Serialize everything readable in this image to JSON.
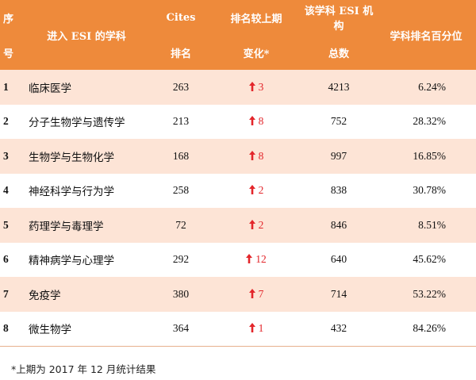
{
  "header": {
    "no_line1": "序",
    "no_line2": "号",
    "subject": "进入 ESI 的学科",
    "cites_line1": "Cites",
    "cites_line2": "排名",
    "change_line1": "排名较上期",
    "change_line2": "变化*",
    "total_line1": "该学科 ESI 机构",
    "total_line2": "总数",
    "percentile": "学科排名百分位"
  },
  "rows": [
    {
      "no": "1",
      "subject": "临床医学",
      "rank": "263",
      "change": "3",
      "total": "4213",
      "pct": "6.24%"
    },
    {
      "no": "2",
      "subject": "分子生物学与遗传学",
      "rank": "213",
      "change": "8",
      "total": "752",
      "pct": "28.32%"
    },
    {
      "no": "3",
      "subject": "生物学与生物化学",
      "rank": "168",
      "change": "8",
      "total": "997",
      "pct": "16.85%"
    },
    {
      "no": "4",
      "subject": "神经科学与行为学",
      "rank": "258",
      "change": "2",
      "total": "838",
      "pct": "30.78%"
    },
    {
      "no": "5",
      "subject": "药理学与毒理学",
      "rank": "72",
      "change": "2",
      "total": "846",
      "pct": "8.51%"
    },
    {
      "no": "6",
      "subject": "精神病学与心理学",
      "rank": "292",
      "change": "12",
      "total": "640",
      "pct": "45.62%"
    },
    {
      "no": "7",
      "subject": "免疫学",
      "rank": "380",
      "change": "7",
      "total": "714",
      "pct": "53.22%"
    },
    {
      "no": "8",
      "subject": "微生物学",
      "rank": "364",
      "change": "1",
      "total": "432",
      "pct": "84.26%"
    }
  ],
  "footnote": "*上期为 2017 年 12 月统计结果",
  "colors": {
    "header_bg": "#ee8a3b",
    "stripe": "#fde4d6",
    "arrow": "#e3262b"
  },
  "icons": {
    "change_arrow": "arrow-up-icon"
  }
}
